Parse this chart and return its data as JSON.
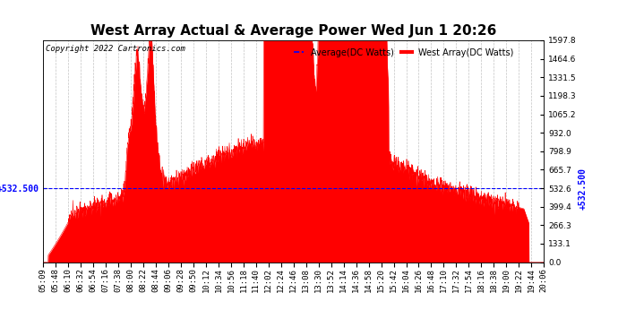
{
  "title": "West Array Actual & Average Power Wed Jun 1 20:26",
  "copyright": "Copyright 2022 Cartronics.com",
  "legend_avg": "Average(DC Watts)",
  "legend_west": "West Array(DC Watts)",
  "legend_avg_color": "blue",
  "legend_west_color": "red",
  "y_right_ticks": [
    0.0,
    133.1,
    266.3,
    399.4,
    532.6,
    665.7,
    798.9,
    932.0,
    1065.2,
    1198.3,
    1331.5,
    1464.6,
    1597.8
  ],
  "avg_line_value": 532.5,
  "avg_line_label": "+532.500",
  "y_max": 1597.8,
  "y_min": 0.0,
  "fill_color": "red",
  "background_color": "white",
  "grid_color": "#aaaaaa",
  "grid_style": "--",
  "title_fontsize": 11,
  "tick_fontsize": 6.5,
  "x_labels": [
    "05:09",
    "05:48",
    "06:10",
    "06:32",
    "06:54",
    "07:16",
    "07:38",
    "08:00",
    "08:22",
    "08:44",
    "09:06",
    "09:28",
    "09:50",
    "10:12",
    "10:34",
    "10:56",
    "11:18",
    "11:40",
    "12:02",
    "12:24",
    "12:46",
    "13:08",
    "13:30",
    "13:52",
    "14:14",
    "14:36",
    "14:58",
    "15:20",
    "15:42",
    "16:04",
    "16:26",
    "16:48",
    "17:10",
    "17:32",
    "17:54",
    "18:16",
    "18:38",
    "19:00",
    "19:22",
    "19:44",
    "20:06"
  ]
}
